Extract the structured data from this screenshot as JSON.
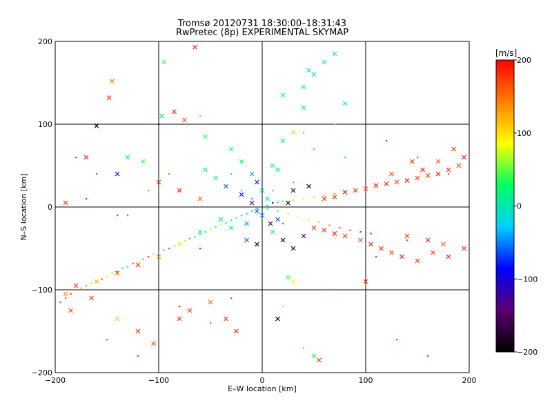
{
  "chart_data": {
    "type": "scatter",
    "title": "Tromsø 20120731 18:30:00–18:31:43",
    "subtitle": "RwPretec (8p) EXPERIMENTAL SKYMAP",
    "xlabel": "E–W location [km]",
    "ylabel": "N–S location [km]",
    "xlim": [
      -200,
      200
    ],
    "ylim": [
      -200,
      200
    ],
    "x_ticks": [
      -200,
      -100,
      0,
      100,
      200
    ],
    "y_ticks": [
      -200,
      -100,
      0,
      100,
      200
    ],
    "x_tick_labels": [
      "−200",
      "−100",
      "0",
      "100",
      "200"
    ],
    "y_tick_labels": [
      "−200",
      "−100",
      "0",
      "100",
      "200"
    ],
    "grid": true,
    "colorbar": {
      "label": "[m/s]",
      "range": [
        -200,
        200
      ],
      "ticks": [
        200,
        100,
        0,
        -100,
        -200
      ],
      "tick_labels": [
        "200",
        "100",
        "0",
        "−100",
        "−200"
      ],
      "colors": [
        "#000000",
        "#5a0070",
        "#0000ff",
        "#00d0ff",
        "#00ff60",
        "#ffff00",
        "#ff8000",
        "#ff0000"
      ]
    },
    "series": [
      {
        "marker": "dot",
        "points": [
          [
            -195,
            -115,
            180
          ],
          [
            -190,
            -110,
            170
          ],
          [
            -185,
            -105,
            180
          ],
          [
            -180,
            -100,
            150
          ],
          [
            -175,
            -98,
            120
          ],
          [
            -170,
            -95,
            140
          ],
          [
            -165,
            -92,
            60
          ],
          [
            -160,
            -90,
            80
          ],
          [
            -155,
            -87,
            170
          ],
          [
            -150,
            -84,
            100
          ],
          [
            -145,
            -80,
            60
          ],
          [
            -140,
            -78,
            180
          ],
          [
            -135,
            -74,
            40
          ],
          [
            -130,
            -72,
            20
          ],
          [
            -125,
            -68,
            160
          ],
          [
            -120,
            -66,
            80
          ],
          [
            -115,
            -63,
            30
          ],
          [
            -110,
            -60,
            180
          ],
          [
            -105,
            -57,
            60
          ],
          [
            -100,
            -55,
            40
          ],
          [
            -95,
            -52,
            10
          ],
          [
            -90,
            -50,
            170
          ],
          [
            -85,
            -47,
            50
          ],
          [
            -80,
            -44,
            20
          ],
          [
            -75,
            -41,
            60
          ],
          [
            -70,
            -38,
            150
          ],
          [
            -65,
            -36,
            30
          ],
          [
            -60,
            -33,
            40
          ],
          [
            -55,
            -30,
            10
          ],
          [
            -50,
            -27,
            60
          ],
          [
            -45,
            -24,
            20
          ],
          [
            -40,
            -21,
            80
          ],
          [
            -35,
            -19,
            30
          ],
          [
            -30,
            -16,
            10
          ],
          [
            -25,
            -13,
            40
          ],
          [
            -20,
            -10,
            -20
          ],
          [
            -15,
            -8,
            20
          ],
          [
            -10,
            -5,
            0
          ],
          [
            -5,
            -2,
            -40
          ],
          [
            0,
            0,
            -60
          ],
          [
            5,
            2,
            -20
          ],
          [
            10,
            5,
            -100
          ],
          [
            15,
            6,
            20
          ],
          [
            20,
            7,
            40
          ],
          [
            30,
            8,
            60
          ],
          [
            40,
            10,
            80
          ],
          [
            50,
            12,
            100
          ],
          [
            60,
            14,
            120
          ],
          [
            70,
            16,
            140
          ],
          [
            80,
            18,
            160
          ],
          [
            90,
            20,
            180
          ],
          [
            100,
            22,
            190
          ],
          [
            5,
            -2,
            20
          ],
          [
            15,
            -5,
            40
          ],
          [
            25,
            -8,
            60
          ],
          [
            35,
            -12,
            80
          ],
          [
            45,
            -15,
            100
          ],
          [
            55,
            -18,
            120
          ],
          [
            65,
            -22,
            140
          ],
          [
            75,
            -25,
            160
          ],
          [
            85,
            -28,
            170
          ],
          [
            95,
            -30,
            180
          ],
          [
            105,
            -32,
            190
          ],
          [
            -180,
            60,
            180
          ],
          [
            -160,
            40,
            170
          ],
          [
            -130,
            -10,
            160
          ],
          [
            -110,
            20,
            140
          ],
          [
            -90,
            40,
            150
          ],
          [
            -60,
            -50,
            190
          ],
          [
            -30,
            40,
            0
          ],
          [
            -20,
            20,
            10
          ],
          [
            -10,
            10,
            -40
          ],
          [
            10,
            20,
            20
          ],
          [
            20,
            -20,
            -50
          ],
          [
            30,
            30,
            10
          ],
          [
            -150,
            -160,
            170
          ],
          [
            -120,
            -180,
            180
          ],
          [
            -80,
            -120,
            190
          ],
          [
            -50,
            -140,
            160
          ],
          [
            -30,
            -110,
            170
          ],
          [
            20,
            -120,
            60
          ],
          [
            40,
            -170,
            40
          ],
          [
            60,
            -100,
            20
          ],
          [
            130,
            -160,
            180
          ],
          [
            160,
            -180,
            170
          ],
          [
            180,
            40,
            160
          ],
          [
            150,
            60,
            180
          ],
          [
            120,
            80,
            190
          ],
          [
            70,
            100,
            60
          ],
          [
            50,
            70,
            0
          ],
          [
            40,
            90,
            20
          ],
          [
            -100,
            100,
            -150
          ],
          [
            -60,
            110,
            40
          ],
          [
            80,
            60,
            20
          ],
          [
            100,
            40,
            0
          ],
          [
            -140,
            -10,
            180
          ],
          [
            -170,
            10,
            190
          ],
          [
            110,
            -60,
            180
          ],
          [
            140,
            -40,
            170
          ]
        ]
      },
      {
        "marker": "cross",
        "points": [
          [
            -65,
            193,
            180
          ],
          [
            -95,
            175,
            40
          ],
          [
            -145,
            152,
            140
          ],
          [
            -148,
            132,
            180
          ],
          [
            -85,
            115,
            180
          ],
          [
            -75,
            105,
            170
          ],
          [
            -97,
            110,
            20
          ],
          [
            45,
            165,
            20
          ],
          [
            50,
            160,
            10
          ],
          [
            70,
            185,
            0
          ],
          [
            60,
            175,
            20
          ],
          [
            40,
            145,
            30
          ],
          [
            20,
            135,
            20
          ],
          [
            40,
            120,
            30
          ],
          [
            80,
            125,
            10
          ],
          [
            -160,
            98,
            -200
          ],
          [
            30,
            90,
            60
          ],
          [
            20,
            80,
            20
          ],
          [
            -55,
            85,
            40
          ],
          [
            -30,
            70,
            30
          ],
          [
            -20,
            55,
            20
          ],
          [
            -10,
            40,
            -40
          ],
          [
            -5,
            30,
            -80
          ],
          [
            0,
            20,
            0
          ],
          [
            5,
            10,
            -20
          ],
          [
            -5,
            -5,
            -60
          ],
          [
            -15,
            -20,
            -40
          ],
          [
            10,
            -30,
            20
          ],
          [
            20,
            -40,
            -200
          ],
          [
            30,
            -50,
            -190
          ],
          [
            -30,
            -25,
            0
          ],
          [
            -40,
            -15,
            20
          ],
          [
            -60,
            -30,
            10
          ],
          [
            -80,
            -45,
            80
          ],
          [
            -100,
            -60,
            140
          ],
          [
            -120,
            -70,
            180
          ],
          [
            -140,
            -80,
            160
          ],
          [
            -160,
            -90,
            120
          ],
          [
            -180,
            -95,
            180
          ],
          [
            -190,
            -105,
            140
          ],
          [
            60,
            10,
            180
          ],
          [
            70,
            12,
            170
          ],
          [
            80,
            18,
            190
          ],
          [
            90,
            20,
            180
          ],
          [
            100,
            22,
            160
          ],
          [
            110,
            26,
            190
          ],
          [
            120,
            28,
            180
          ],
          [
            130,
            30,
            170
          ],
          [
            140,
            32,
            190
          ],
          [
            150,
            35,
            180
          ],
          [
            160,
            38,
            170
          ],
          [
            170,
            40,
            190
          ],
          [
            180,
            45,
            180
          ],
          [
            190,
            50,
            170
          ],
          [
            195,
            60,
            190
          ],
          [
            185,
            70,
            180
          ],
          [
            170,
            55,
            160
          ],
          [
            155,
            45,
            190
          ],
          [
            145,
            55,
            180
          ],
          [
            125,
            40,
            170
          ],
          [
            50,
            -25,
            180
          ],
          [
            60,
            -28,
            170
          ],
          [
            70,
            -32,
            190
          ],
          [
            80,
            -35,
            180
          ],
          [
            95,
            -40,
            170
          ],
          [
            105,
            -45,
            190
          ],
          [
            115,
            -50,
            180
          ],
          [
            125,
            -55,
            170
          ],
          [
            135,
            -60,
            190
          ],
          [
            150,
            -65,
            180
          ],
          [
            165,
            -55,
            170
          ],
          [
            180,
            -60,
            190
          ],
          [
            195,
            -50,
            180
          ],
          [
            175,
            -45,
            160
          ],
          [
            160,
            -40,
            190
          ],
          [
            140,
            -35,
            180
          ],
          [
            -185,
            -125,
            170
          ],
          [
            -165,
            -110,
            180
          ],
          [
            -140,
            -135,
            60
          ],
          [
            -120,
            -150,
            180
          ],
          [
            -105,
            -165,
            170
          ],
          [
            -80,
            -135,
            180
          ],
          [
            -70,
            -125,
            170
          ],
          [
            -50,
            -115,
            150
          ],
          [
            -35,
            -135,
            180
          ],
          [
            -25,
            -150,
            190
          ],
          [
            15,
            -135,
            -200
          ],
          [
            50,
            -180,
            30
          ],
          [
            55,
            -185,
            180
          ],
          [
            100,
            -90,
            180
          ],
          [
            30,
            -90,
            90
          ],
          [
            25,
            -85,
            40
          ],
          [
            -190,
            5,
            180
          ],
          [
            -170,
            60,
            190
          ],
          [
            -140,
            40,
            -100
          ],
          [
            -130,
            60,
            20
          ],
          [
            -115,
            55,
            40
          ],
          [
            -100,
            30,
            180
          ],
          [
            -80,
            20,
            190
          ],
          [
            -60,
            10,
            160
          ],
          [
            -55,
            45,
            20
          ],
          [
            -45,
            35,
            30
          ],
          [
            -35,
            25,
            -60
          ],
          [
            -20,
            15,
            -100
          ],
          [
            -10,
            5,
            -150
          ],
          [
            0,
            -10,
            -40
          ],
          [
            8,
            -20,
            -120
          ],
          [
            15,
            -15,
            -60
          ],
          [
            25,
            5,
            -200
          ],
          [
            30,
            20,
            -180
          ],
          [
            45,
            25,
            -200
          ],
          [
            40,
            -35,
            -160
          ],
          [
            -5,
            -45,
            -200
          ],
          [
            -15,
            -40,
            -60
          ],
          [
            10,
            50,
            30
          ],
          [
            15,
            45,
            10
          ]
        ]
      }
    ]
  }
}
